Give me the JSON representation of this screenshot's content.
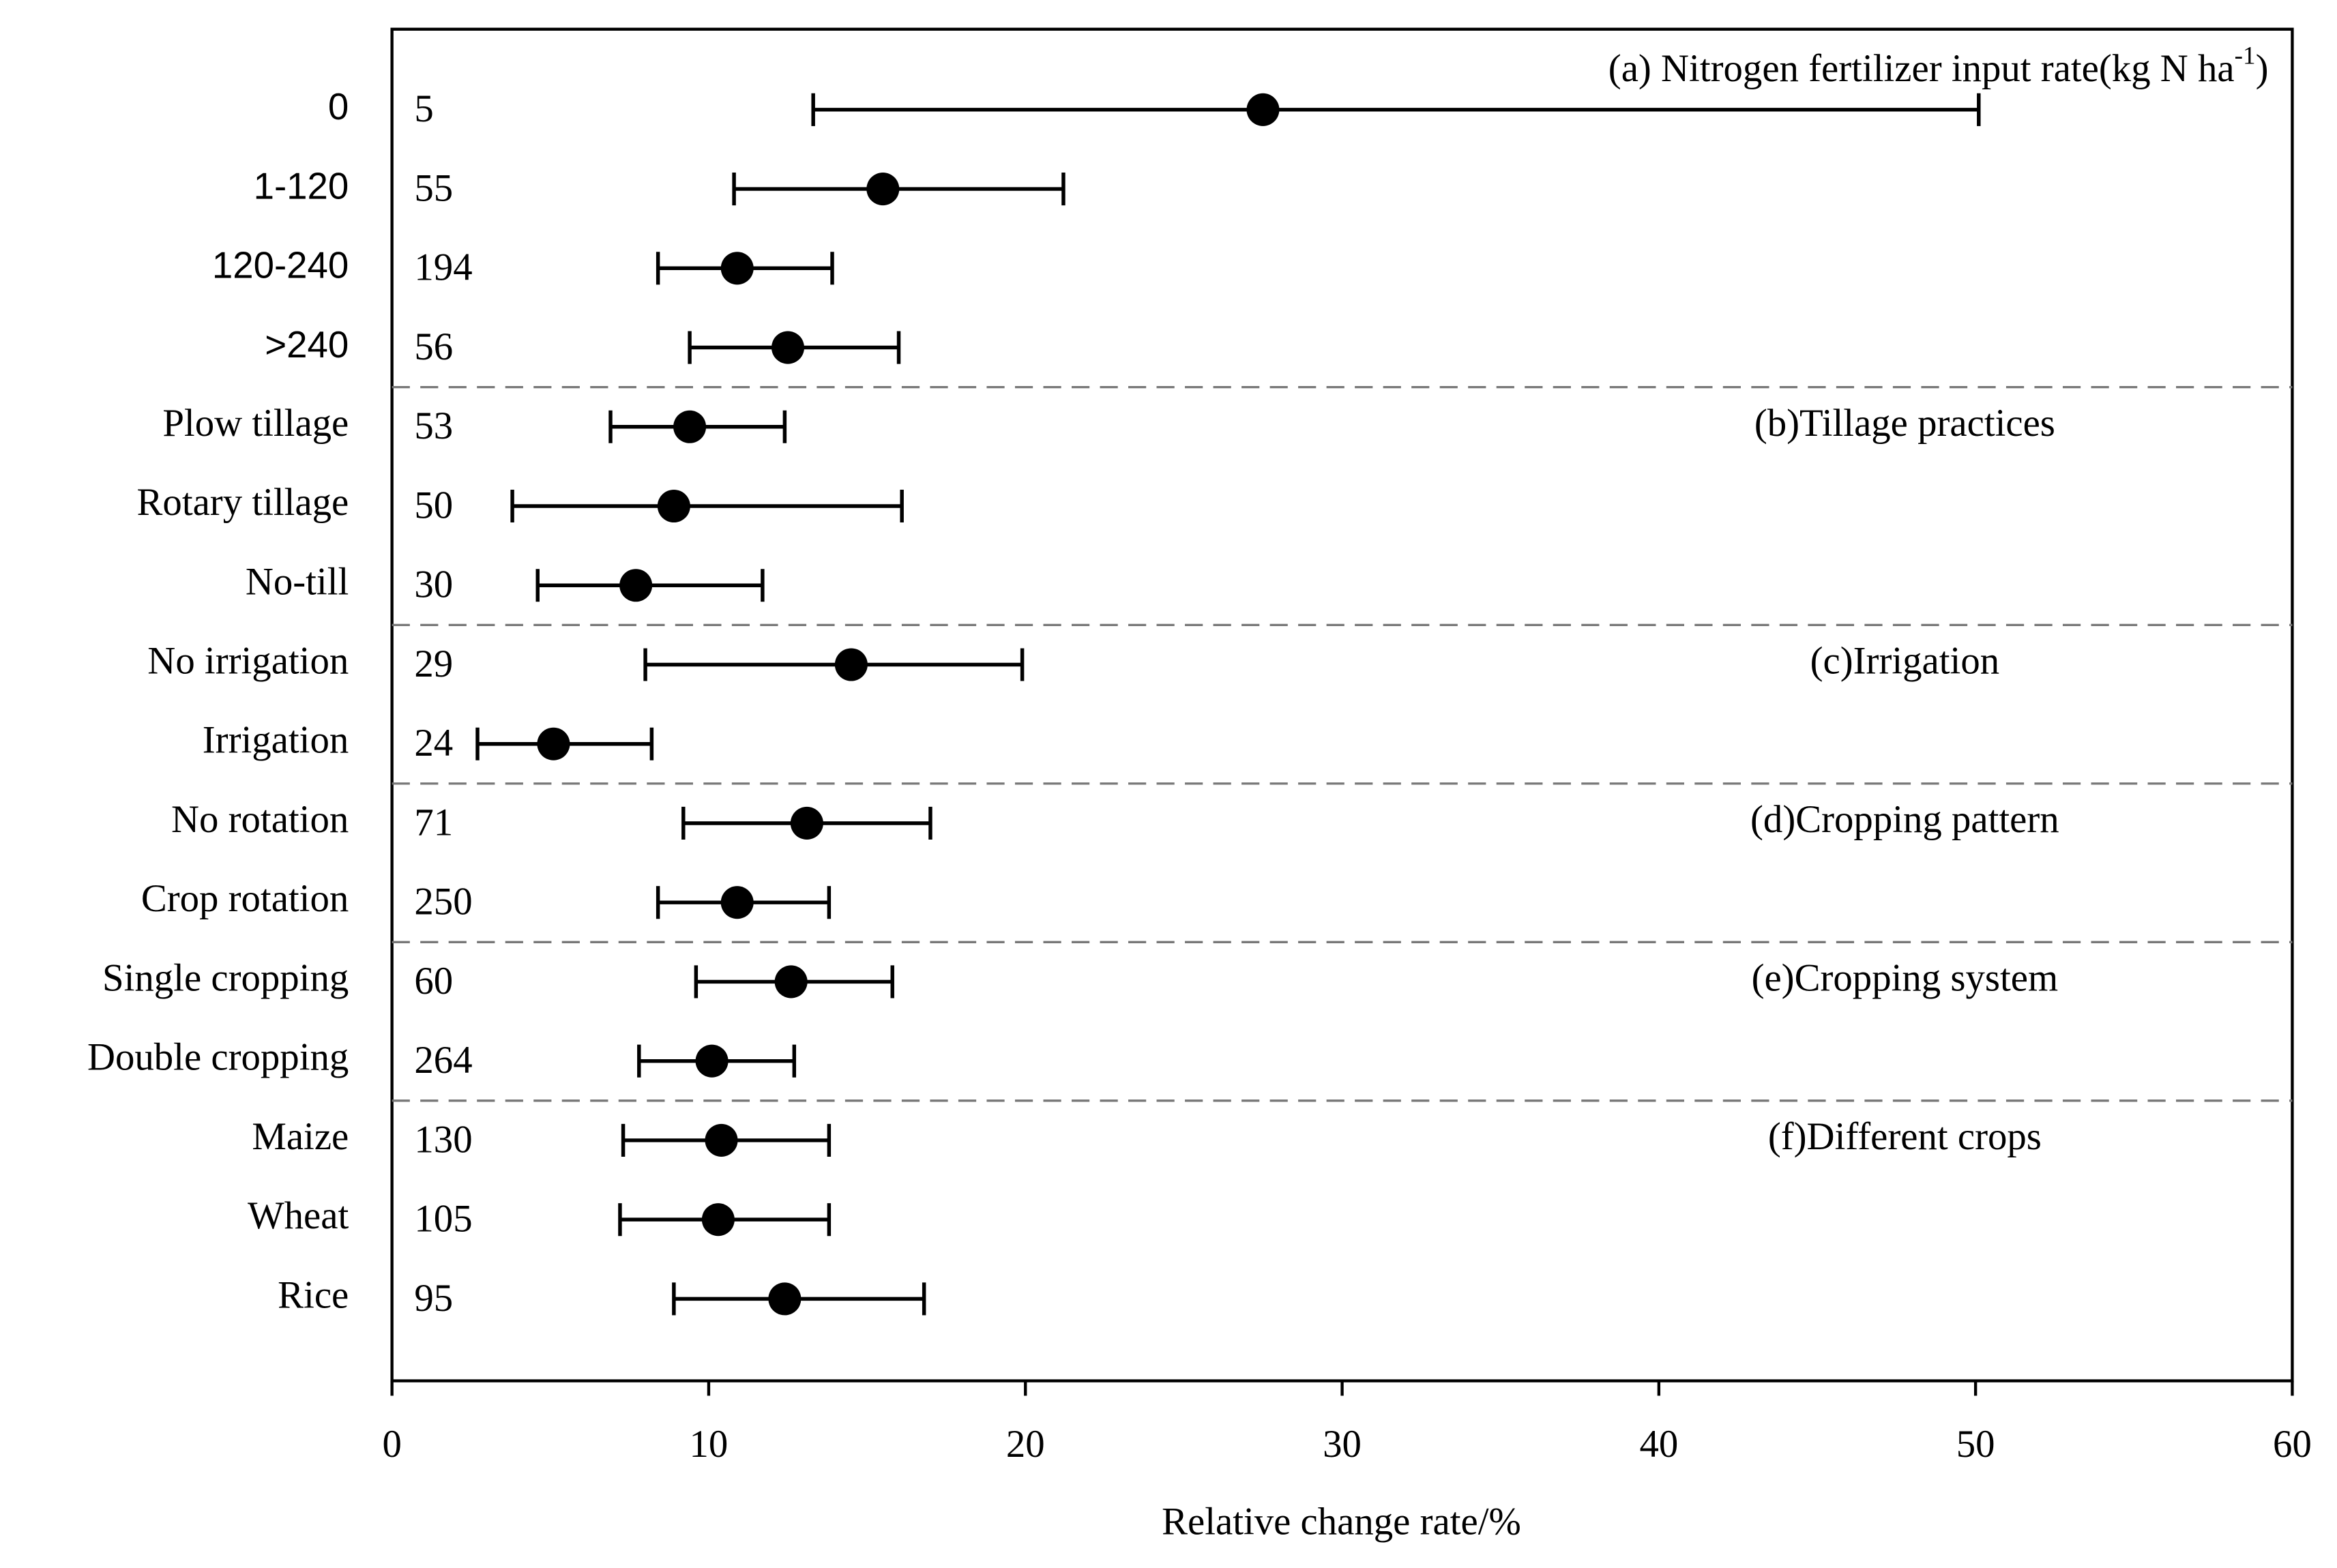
{
  "chart_data": {
    "type": "forest",
    "xlabel": "Relative change rate/%",
    "xlim": [
      0,
      60
    ],
    "xticks": [
      0,
      10,
      20,
      30,
      40,
      50,
      60
    ],
    "color": "#000000",
    "groups": [
      {
        "label": {
          "text": "(a) Nitrogen fertilizer input rate(kg N ha",
          "superscript": "-1",
          "suffix": ")"
        },
        "categories": [
          "0",
          "1-120",
          "120-240",
          ">240"
        ],
        "values": [
          27.5,
          15.5,
          10.9,
          12.5
        ],
        "ci_low": [
          13.3,
          10.8,
          8.4,
          9.4
        ],
        "ci_high": [
          50.1,
          21.2,
          13.9,
          16.0
        ],
        "n": [
          5,
          55,
          194,
          56
        ]
      },
      {
        "label": {
          "text": "(b)Tillage practices"
        },
        "categories": [
          "Plow tillage",
          "Rotary tillage",
          "No-till"
        ],
        "values": [
          9.4,
          8.9,
          7.7
        ],
        "ci_low": [
          6.9,
          3.8,
          4.6
        ],
        "ci_high": [
          12.4,
          16.1,
          11.7
        ],
        "n": [
          53,
          50,
          30
        ]
      },
      {
        "label": {
          "text": "(c)Irrigation"
        },
        "categories": [
          "No irrigation",
          "Irrigation"
        ],
        "values": [
          14.5,
          5.1
        ],
        "ci_low": [
          8.0,
          2.7
        ],
        "ci_high": [
          19.9,
          8.2
        ],
        "n": [
          29,
          24
        ]
      },
      {
        "label": {
          "text": "(d)Cropping pattern"
        },
        "categories": [
          "No rotation",
          "Crop rotation"
        ],
        "values": [
          13.1,
          10.9
        ],
        "ci_low": [
          9.2,
          8.4
        ],
        "ci_high": [
          17.0,
          13.8
        ],
        "n": [
          71,
          250
        ]
      },
      {
        "label": {
          "text": "(e)Cropping system"
        },
        "categories": [
          "Single cropping",
          "Double cropping"
        ],
        "values": [
          12.6,
          10.1
        ],
        "ci_low": [
          9.6,
          7.8
        ],
        "ci_high": [
          15.8,
          12.7
        ],
        "n": [
          60,
          264
        ]
      },
      {
        "label": {
          "text": "(f)Different crops"
        },
        "categories": [
          "Maize",
          "Wheat",
          "Rice"
        ],
        "values": [
          10.4,
          10.3,
          12.4
        ],
        "ci_low": [
          7.3,
          7.2,
          8.9
        ],
        "ci_high": [
          13.8,
          13.8,
          16.8
        ],
        "n": [
          130,
          105,
          95
        ]
      }
    ]
  }
}
